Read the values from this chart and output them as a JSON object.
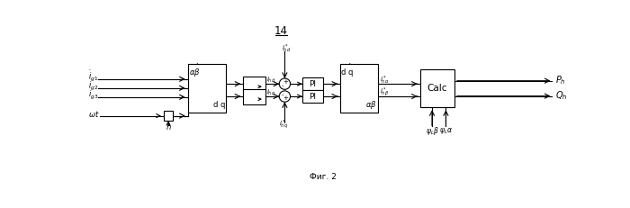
{
  "title": "14",
  "fig_caption": "Фиг. 2",
  "bg_color": "#ffffff",
  "line_color": "#000000",
  "figsize": [
    7.0,
    2.31
  ],
  "dpi": 100,
  "fg_labels": [
    "$\\dot{i}_{g1}$",
    "$\\dot{i}_{g2}$",
    "$\\dot{i}_{g3}$"
  ],
  "omega_label": "$\\omega t$",
  "h_label": "h",
  "ihd_label": "$i_{hd}$",
  "ihq_label": "$i_{hq}$",
  "ihd_star_label": "$i^*_{hd}$",
  "ihq_star_label": "$i^*_{hq}$",
  "iha_star_label": "$i^*_{h\\alpha}$",
  "ihb_star_label": "$i^*_{h\\beta}$",
  "psi_lb_label": "$\\psi_L\\beta$",
  "psi_la_label": "$\\psi_L\\alpha$",
  "ph_label": "$P_h$",
  "qh_label": "$Q_h$",
  "ab_top": "$\\alpha\\beta$",
  "dq_bot": "d q",
  "dq_top": "d q",
  "ab_bot": "$\\alpha\\beta$",
  "pi_label": "PI",
  "calc_label": "Calc"
}
